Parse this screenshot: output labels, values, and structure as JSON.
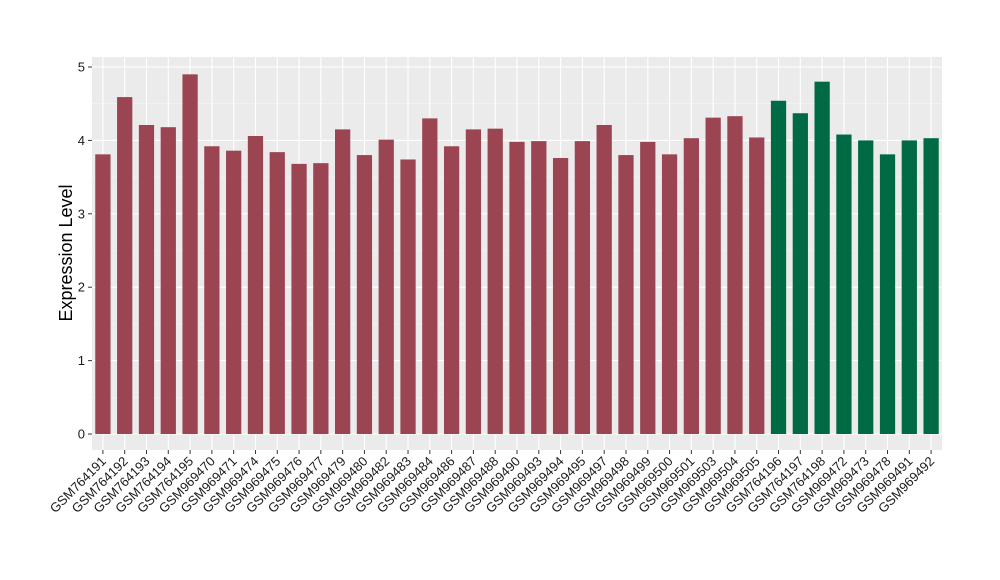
{
  "colors": {
    "panel_background": "#ebebeb",
    "grid_major": "#ffffff",
    "grid_minor": "#f5f5f5",
    "series_colors": [
      "#9b4452",
      "#006a45"
    ]
  },
  "chart_data": {
    "type": "bar",
    "title": "",
    "xlabel": "",
    "ylabel": "Expression Level",
    "ylim": [
      0,
      5.1
    ],
    "yticks": [
      0,
      1,
      2,
      3,
      4,
      5
    ],
    "grid": true,
    "legend": "none",
    "categories": [
      "GSM764191",
      "GSM764192",
      "GSM764193",
      "GSM764194",
      "GSM764195",
      "GSM969470",
      "GSM969471",
      "GSM969474",
      "GSM969475",
      "GSM969476",
      "GSM969477",
      "GSM969479",
      "GSM969480",
      "GSM969482",
      "GSM969483",
      "GSM969484",
      "GSM969486",
      "GSM969487",
      "GSM969488",
      "GSM969490",
      "GSM969493",
      "GSM969494",
      "GSM969495",
      "GSM969497",
      "GSM969498",
      "GSM969499",
      "GSM969500",
      "GSM969501",
      "GSM969503",
      "GSM969504",
      "GSM969505",
      "GSM764196",
      "GSM764197",
      "GSM764198",
      "GSM969472",
      "GSM969473",
      "GSM969478",
      "GSM969491",
      "GSM969492"
    ],
    "values": [
      3.81,
      4.59,
      4.21,
      4.18,
      4.9,
      3.92,
      3.86,
      4.06,
      3.84,
      3.68,
      3.69,
      4.15,
      3.8,
      4.01,
      3.74,
      4.3,
      3.92,
      4.15,
      4.16,
      3.98,
      3.99,
      3.76,
      3.99,
      4.21,
      3.8,
      3.98,
      3.81,
      4.03,
      4.31,
      4.33,
      4.04,
      4.54,
      4.37,
      4.8,
      4.08,
      4.0,
      3.81,
      4.0,
      4.03
    ],
    "groups": [
      0,
      0,
      0,
      0,
      0,
      0,
      0,
      0,
      0,
      0,
      0,
      0,
      0,
      0,
      0,
      0,
      0,
      0,
      0,
      0,
      0,
      0,
      0,
      0,
      0,
      0,
      0,
      0,
      0,
      0,
      0,
      1,
      1,
      1,
      1,
      1,
      1,
      1,
      1
    ]
  }
}
